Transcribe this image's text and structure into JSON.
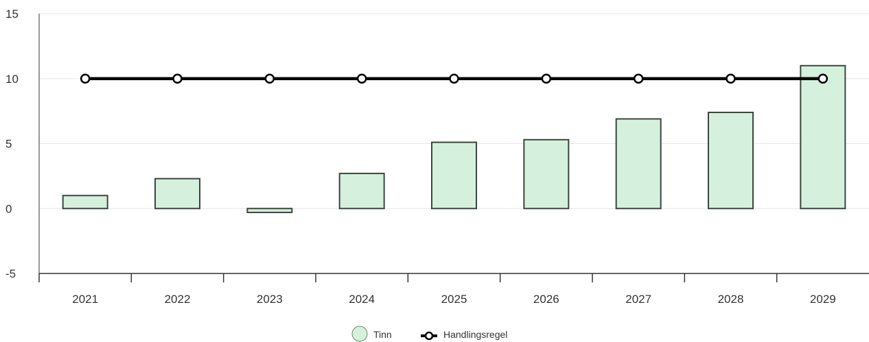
{
  "chart_data": {
    "type": "bar",
    "categories": [
      "2021",
      "2022",
      "2023",
      "2024",
      "2025",
      "2026",
      "2027",
      "2028",
      "2029"
    ],
    "series": [
      {
        "name": "Tinn",
        "kind": "bar",
        "values": [
          1.0,
          2.3,
          -0.3,
          2.7,
          5.1,
          5.3,
          6.9,
          7.4,
          11.0
        ],
        "color": "#d5f0dc",
        "stroke": "#3a463d"
      },
      {
        "name": "Handlingsregel",
        "kind": "line",
        "values": [
          10,
          10,
          10,
          10,
          10,
          10,
          10,
          10,
          10
        ],
        "color": "#000000"
      }
    ],
    "title": "",
    "xlabel": "",
    "ylabel": "",
    "ylim": [
      -5,
      15
    ],
    "yticks": [
      -5,
      0,
      5,
      10,
      15
    ],
    "ytick_labels": [
      "-5",
      "0",
      "5",
      "10",
      "15"
    ],
    "grid": true,
    "legend_position": "bottom-center"
  }
}
